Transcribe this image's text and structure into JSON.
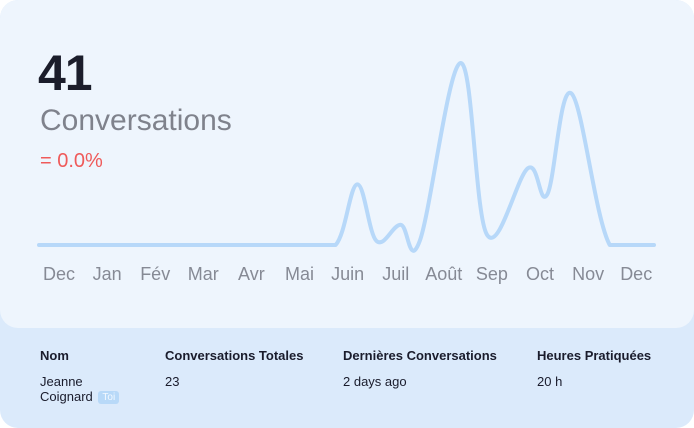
{
  "summary": {
    "total": "41",
    "label": "Conversations",
    "change": "= 0.0%"
  },
  "chart_data": {
    "type": "line",
    "categories": [
      "Dec",
      "Jan",
      "Fév",
      "Mar",
      "Avr",
      "Mai",
      "Juin",
      "Juil",
      "Août",
      "Sep",
      "Oct",
      "Nov",
      "Dec"
    ],
    "series": [
      {
        "values": [
          0,
          0,
          0,
          0,
          0,
          0,
          0,
          3,
          0.2,
          1,
          0.2,
          9,
          0.5,
          3.8,
          2.5,
          7.5,
          0,
          0
        ]
      }
    ],
    "x": [
      0,
      1,
      2,
      3,
      4,
      5,
      5.75,
      6.2,
      6.6,
      7.1,
      7.5,
      8.35,
      8.9,
      9.75,
      10.15,
      10.65,
      11.45,
      12.45
    ],
    "ylim": [
      0,
      9.5
    ],
    "colors": {
      "line": "#b7d8f9"
    }
  },
  "table": {
    "headers": [
      "Nom",
      "Conversations Totales",
      "Dernières Conversations",
      "Heures Pratiquées"
    ],
    "row": {
      "name_line1": "Jeanne",
      "name_line2": "Coignard",
      "badge": "Toi",
      "total": "23",
      "last": "2 days ago",
      "hours": "20 h"
    }
  }
}
